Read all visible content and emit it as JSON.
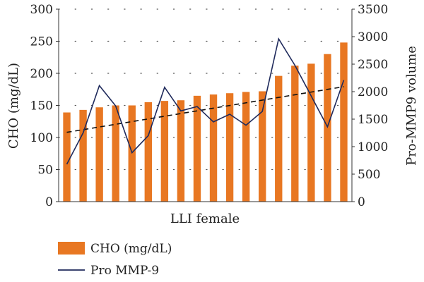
{
  "chart_data": {
    "type": "bar+line",
    "xlabel": "LLI female",
    "ylabel_left": "CHO (mg/dL)",
    "ylabel_right": "Pro-MMP9 volume",
    "ylim_left": [
      0,
      300
    ],
    "ylim_right": [
      0,
      3500
    ],
    "yticks_left": [
      0,
      50,
      100,
      150,
      200,
      250,
      300
    ],
    "yticks_right": [
      0,
      500,
      1000,
      1500,
      2000,
      2500,
      3000,
      3500
    ],
    "grid": "horizontal dotted",
    "legend_position": "bottom-left",
    "bar_series": {
      "name": "CHO (mg/dL)",
      "axis": "left",
      "color": "#E87722",
      "values": [
        139,
        143,
        147,
        150,
        150,
        155,
        157,
        158,
        165,
        167,
        169,
        171,
        172,
        196,
        212,
        215,
        230,
        248
      ]
    },
    "line_series": {
      "name": "Pro MMP-9",
      "axis": "right",
      "color": "#1F2A5C",
      "values": [
        680,
        1250,
        2110,
        1740,
        890,
        1200,
        2080,
        1650,
        1730,
        1450,
        1590,
        1390,
        1640,
        2960,
        2480,
        1920,
        1360,
        2210
      ]
    },
    "trendline": {
      "style": "dashed",
      "color": "#111111",
      "axis": "right",
      "start": 1260,
      "end": 2090
    },
    "legend": [
      {
        "label": "CHO (mg/dL)",
        "kind": "bar"
      },
      {
        "label": "Pro MMP-9",
        "kind": "line"
      }
    ]
  }
}
